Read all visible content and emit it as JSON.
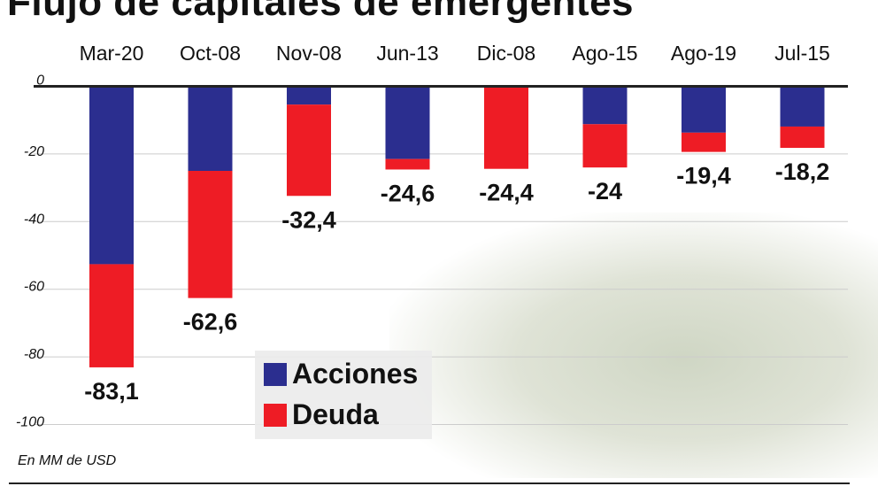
{
  "title": "Flujo de capitales de emergentes",
  "note": "En MM de USD",
  "colors": {
    "acciones": "#2b2e8f",
    "deuda": "#ee1c25"
  },
  "chart_data": {
    "type": "bar",
    "stacked": true,
    "categories": [
      "Mar-20",
      "Oct-08",
      "Nov-08",
      "Jun-13",
      "Dic-08",
      "Ago-15",
      "Ago-19",
      "Jul-15"
    ],
    "series": [
      {
        "name": "Acciones",
        "values": [
          -52.6,
          -25.0,
          -5.4,
          -21.5,
          0,
          -11.2,
          -13.7,
          -11.9
        ]
      },
      {
        "name": "Deuda",
        "values": [
          -30.5,
          -37.6,
          -27.0,
          -3.1,
          -24.4,
          -12.8,
          -5.7,
          -6.3
        ]
      }
    ],
    "totals_labels": [
      "-83,1",
      "-62,6",
      "-32,4",
      "-24,6",
      "-24,4",
      "-24",
      "-19,4",
      "-18,2"
    ],
    "yticks": [
      "0",
      "-20",
      "-40",
      "-60",
      "-80",
      "-100"
    ],
    "ytick_values": [
      0,
      -20,
      -40,
      -60,
      -80,
      -100
    ],
    "ylim": [
      -100,
      0
    ],
    "grid": true,
    "legend_placement": "bottom-center"
  }
}
